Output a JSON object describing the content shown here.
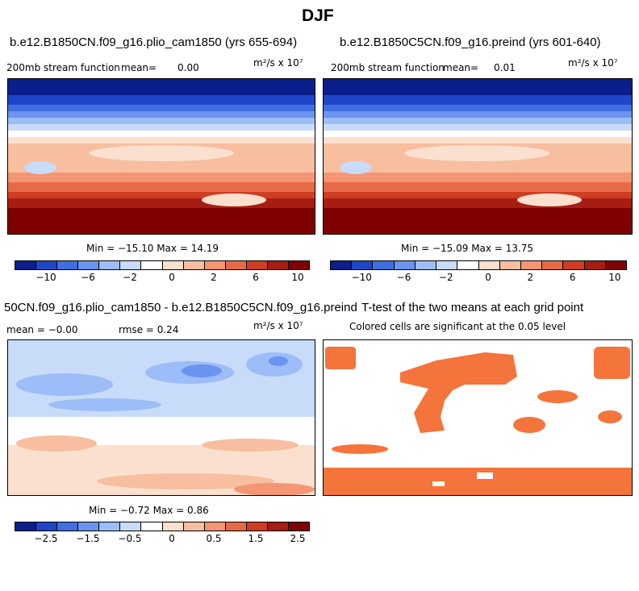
{
  "figure": {
    "title": "DJF"
  },
  "panels": {
    "case1": {
      "title": "b.e12.B1850CN.f09_g16.plio_cam1850 (yrs 655-694)",
      "variable": "200mb stream function",
      "mean_label": "mean=",
      "mean_value": "0.00",
      "units": "m²/s x 10⁷",
      "min_max": "Min = −15.10 Max =  14.19"
    },
    "case2": {
      "title": "b.e12.B1850C5CN.f09_g16.preind (yrs 601-640)",
      "variable": "200mb stream function",
      "mean_label": "mean=",
      "mean_value": "0.01",
      "units": "m²/s x 10⁷",
      "min_max": "Min = −15.09 Max =  13.75"
    },
    "diff": {
      "title": "50CN.f09_g16.plio_cam1850 - b.e12.B1850C5CN.f09_g16.preind",
      "mean_text": "mean =  −0.00",
      "rmse_text": "rmse =   0.24",
      "units": "m²/s x 10⁷",
      "min_max": "Min = −0.72 Max =   0.86"
    },
    "ttest": {
      "title": "T-test of the two means at each grid point",
      "subtitle": "Colored cells are significant at the 0.05 level",
      "significant_color": "#f4743b"
    }
  },
  "colorbars": {
    "main": {
      "colors": [
        "#0a1f8c",
        "#1f45c8",
        "#3f6fe0",
        "#6a94f0",
        "#9dbdf8",
        "#c8dcfa",
        "#ffffff",
        "#fbe0cf",
        "#f7bea0",
        "#f49574",
        "#e76a48",
        "#cf3d22",
        "#a81d12",
        "#7f0000"
      ],
      "tick_labels": [
        "−10",
        "−6",
        "−2",
        "0",
        "2",
        "6",
        "10"
      ]
    },
    "diff": {
      "colors": [
        "#0a1f8c",
        "#1f45c8",
        "#3f6fe0",
        "#6a94f0",
        "#9dbdf8",
        "#c8dcfa",
        "#ffffff",
        "#fbe0cf",
        "#f7bea0",
        "#f49574",
        "#e76a48",
        "#cf3d22",
        "#a81d12",
        "#7f0000"
      ],
      "tick_labels": [
        "−2.5",
        "−1.5",
        "−0.5",
        "0",
        "0.5",
        "1.5",
        "2.5"
      ]
    }
  },
  "chart_data": [
    {
      "type": "heatmap",
      "title": "b.e12.B1850CN.f09_g16.plio_cam1850 (yrs 655-694)",
      "variable": "200mb stream function",
      "units": "m²/s x 10⁷",
      "mean": 0.0,
      "min": -15.1,
      "max": 14.19,
      "zonal_profile": {
        "lat": [
          90,
          75,
          60,
          45,
          30,
          15,
          0,
          -15,
          -30,
          -45,
          -60,
          -75,
          -90
        ],
        "value": [
          -15,
          -13,
          -10,
          -6,
          -2,
          2,
          3,
          3,
          6,
          9,
          12,
          14,
          14
        ]
      }
    },
    {
      "type": "heatmap",
      "title": "b.e12.B1850C5CN.f09_g16.preind (yrs 601-640)",
      "variable": "200mb stream function",
      "units": "m²/s x 10⁷",
      "mean": 0.01,
      "min": -15.09,
      "max": 13.75,
      "zonal_profile": {
        "lat": [
          90,
          75,
          60,
          45,
          30,
          15,
          0,
          -15,
          -30,
          -45,
          -60,
          -75,
          -90
        ],
        "value": [
          -15,
          -13,
          -10,
          -6,
          -2,
          2,
          3,
          3,
          6,
          9,
          12,
          13,
          13
        ]
      }
    },
    {
      "type": "heatmap",
      "title": "50CN.f09_g16.plio_cam1850 - b.e12.B1850C5CN.f09_g16.preind",
      "units": "m²/s x 10⁷",
      "mean": -0.0,
      "rmse": 0.24,
      "min": -0.72,
      "max": 0.86
    },
    {
      "type": "heatmap",
      "title": "T-test of the two means at each grid point",
      "subtitle": "Colored cells are significant at the 0.05 level",
      "significance_level": 0.05
    }
  ]
}
